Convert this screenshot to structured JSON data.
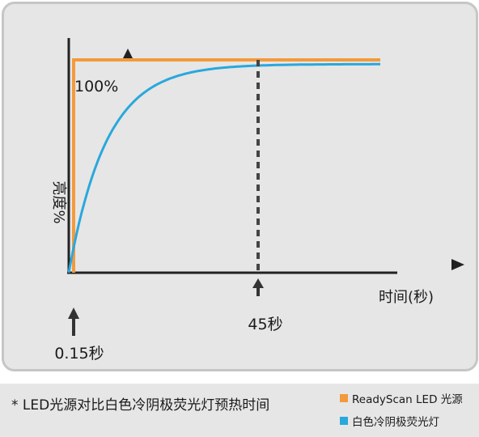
{
  "chart_data": {
    "type": "line",
    "ylabel": "亮度%",
    "xlabel": "时间(秒)",
    "series": [
      {
        "name": "ReadyScan LED 光源",
        "color": "#f39a3c",
        "rise_time_s": 0.15,
        "steady_level_pct": 100
      },
      {
        "name": "白色冷阴极荧光灯",
        "color": "#29a8dc",
        "rise_time_s": 45,
        "steady_level_pct": 98
      }
    ],
    "annotations": {
      "level_100": "100%",
      "time_045": "45秒",
      "time_015": "0.15秒"
    }
  },
  "footer": {
    "note": "* LED光源对比白色冷阴极荧光灯预热时间"
  }
}
